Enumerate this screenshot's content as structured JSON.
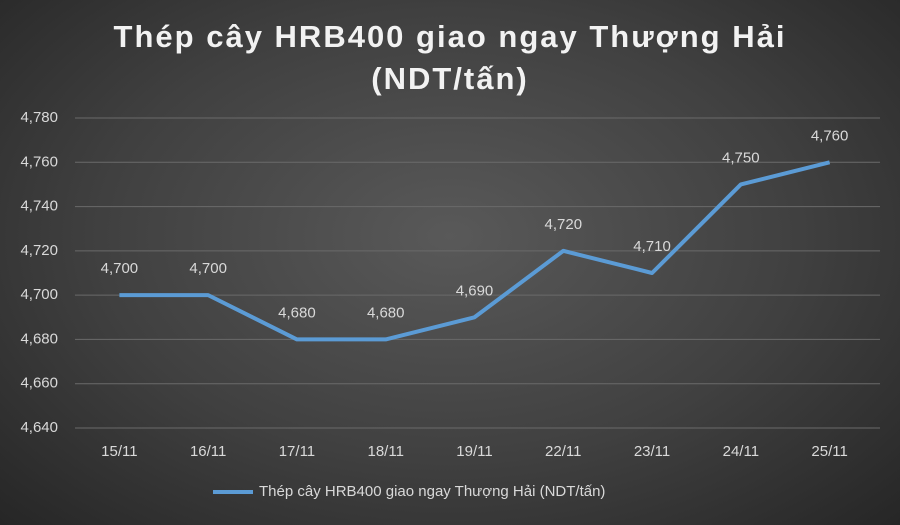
{
  "chart_data": {
    "type": "line",
    "title": "Thép cây HRB400 giao ngay Thượng Hải (NDT/tấn)",
    "categories": [
      "15/11",
      "16/11",
      "17/11",
      "18/11",
      "19/11",
      "22/11",
      "23/11",
      "24/11",
      "25/11"
    ],
    "series": [
      {
        "name": "Thép cây HRB400 giao ngay Thượng Hải (NDT/tấn)",
        "color": "#5b9bd5",
        "values": [
          4700,
          4700,
          4680,
          4680,
          4690,
          4720,
          4710,
          4750,
          4760
        ],
        "value_labels": [
          "4,700",
          "4,700",
          "4,680",
          "4,680",
          "4,690",
          "4,720",
          "4,710",
          "4,750",
          "4,760"
        ]
      }
    ],
    "ylim": [
      4640,
      4780
    ],
    "yticks": [
      {
        "value": 4640,
        "label": "4,640"
      },
      {
        "value": 4660,
        "label": "4,660"
      },
      {
        "value": 4680,
        "label": "4,680"
      },
      {
        "value": 4700,
        "label": "4,700"
      },
      {
        "value": 4720,
        "label": "4,720"
      },
      {
        "value": 4740,
        "label": "4,740"
      },
      {
        "value": 4760,
        "label": "4,760"
      },
      {
        "value": 4780,
        "label": "4,780"
      }
    ],
    "grid": true,
    "legend": "bottom"
  }
}
